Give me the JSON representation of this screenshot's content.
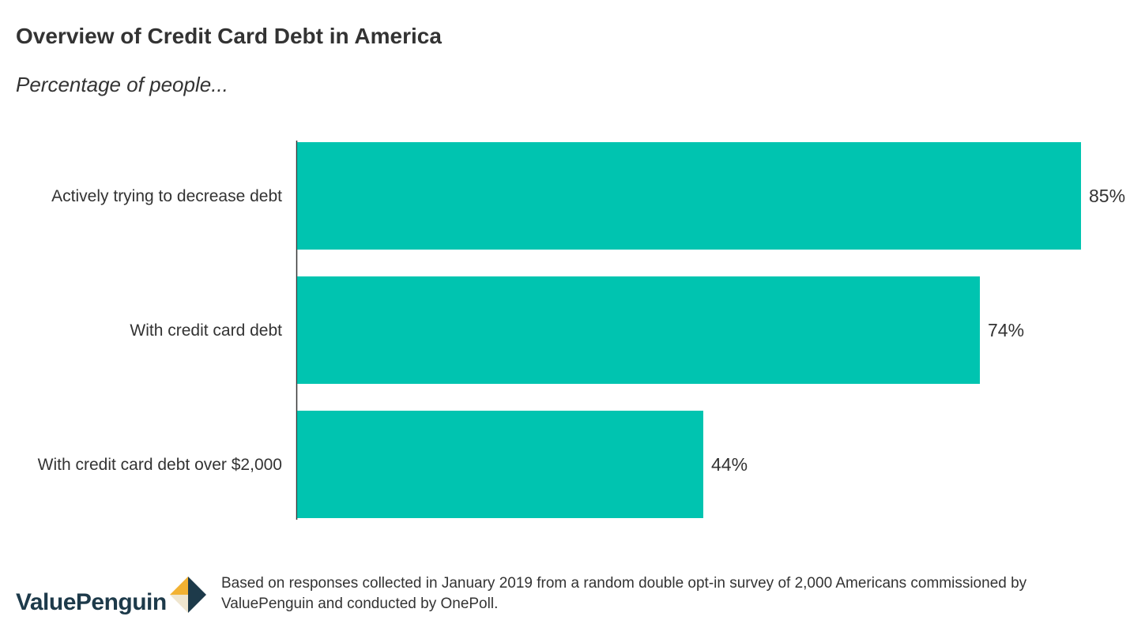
{
  "chart_data": {
    "type": "bar",
    "orientation": "horizontal",
    "title": "Overview of Credit Card Debt in America",
    "subtitle": "Percentage of people...",
    "categories": [
      "Actively trying to decrease debt",
      "With credit card debt",
      "With credit card debt over $2,000"
    ],
    "values": [
      85,
      74,
      44
    ],
    "value_labels": [
      "85%",
      "74%",
      "44%"
    ],
    "xlim": [
      0,
      85
    ],
    "grid": false,
    "bar_color": "#00c4b0"
  },
  "footer": {
    "logo_text": "ValuePenguin",
    "note": "Based on responses collected in January 2019 from a random double opt-in survey of 2,000 Americans commissioned by ValuePenguin and conducted by OnePoll."
  },
  "colors": {
    "bar": "#00c4b0",
    "text": "#333333",
    "logo_navy": "#1d3a4a",
    "logo_gold": "#f2b233",
    "logo_cream": "#efe6cf"
  },
  "icons": {
    "logo_mark": "valuepenguin-logo-icon"
  }
}
